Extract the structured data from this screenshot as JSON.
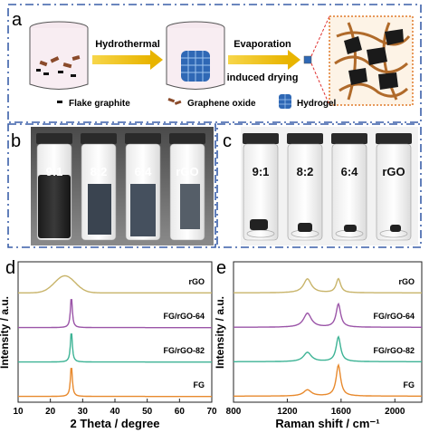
{
  "panel_a": {
    "letter": "a",
    "step1": "Hydrothermal",
    "step2_line1": "Evaporation",
    "step2_line2": "induced drying",
    "legend": [
      "Flake graphite",
      "Graphene oxide",
      "Hydrogel"
    ]
  },
  "panel_b": {
    "letter": "b",
    "vials": [
      "9:1",
      "8:2",
      "6:4",
      "rGO"
    ]
  },
  "panel_c": {
    "letter": "c",
    "vials": [
      "9:1",
      "8:2",
      "6:4",
      "rGO"
    ]
  },
  "chart_data": [
    {
      "panel": "d",
      "type": "line",
      "xlabel": "2 Theta / degree",
      "ylabel": "Intensity / a.u.",
      "xlim": [
        10,
        70
      ],
      "xticks": [
        10,
        20,
        30,
        40,
        50,
        60,
        70
      ],
      "series": [
        {
          "name": "rGO",
          "color": "#c8b46a",
          "kind": "broad",
          "center": 24.5,
          "width": 4.5,
          "height": 0.55
        },
        {
          "name": "FG/rGO-64",
          "color": "#9b55a8",
          "kind": "sharp",
          "center": 26.5,
          "width": 0.35,
          "height": 1.0
        },
        {
          "name": "FG/rGO-82",
          "color": "#3db395",
          "kind": "sharp",
          "center": 26.5,
          "width": 0.35,
          "height": 1.0
        },
        {
          "name": "FG",
          "color": "#e88a2e",
          "kind": "sharp",
          "center": 26.5,
          "width": 0.35,
          "height": 1.0
        }
      ]
    },
    {
      "panel": "e",
      "type": "line",
      "xlabel": "Raman shift / cm⁻¹",
      "ylabel": "Intensity / a.u.",
      "xlim": [
        800,
        2200
      ],
      "xticks": [
        800,
        1200,
        1600,
        2000
      ],
      "series": [
        {
          "name": "rGO",
          "color": "#c8b46a",
          "d_band": 0.45,
          "g_band": 0.45
        },
        {
          "name": "FG/rGO-64",
          "color": "#9b55a8",
          "d_band": 0.45,
          "g_band": 0.75
        },
        {
          "name": "FG/rGO-82",
          "color": "#3db395",
          "d_band": 0.3,
          "g_band": 0.8
        },
        {
          "name": "FG",
          "color": "#e88a2e",
          "d_band": 0.2,
          "g_band": 1.0
        }
      ]
    }
  ],
  "colors": {
    "frame_blue": "#3a5fa8",
    "arrow_yellow": "#f2c300",
    "zoom_orange": "#e07a2a"
  }
}
